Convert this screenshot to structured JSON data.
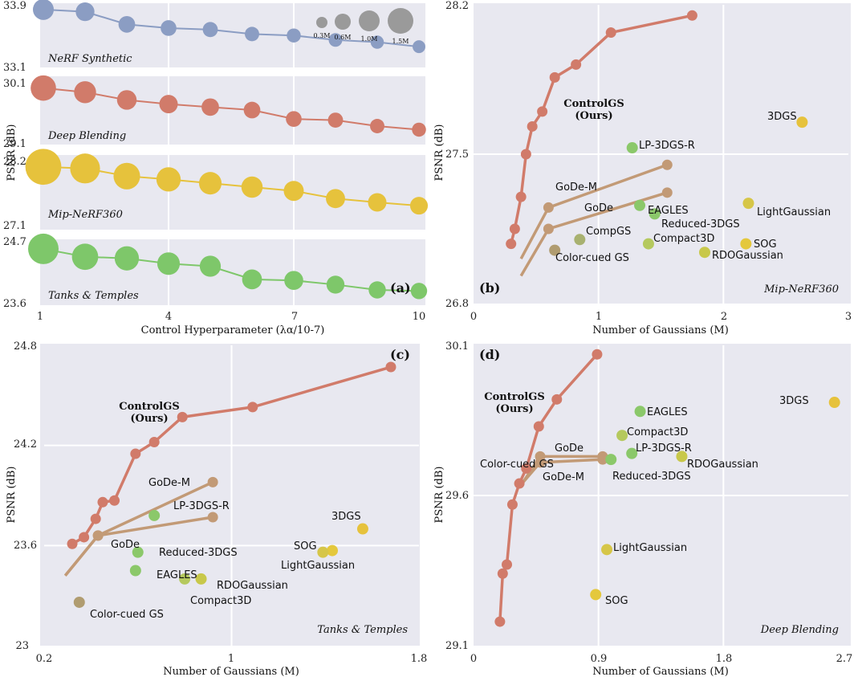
{
  "colors": {
    "panel_bg": "#e8e8f0",
    "grid": "#ffffff",
    "controlgs": "#d17b6a",
    "synthetic": "#8b9dc3",
    "deepblend": "#d17b6a",
    "mip": "#e6c23c",
    "tanks": "#7ec76a",
    "gode": "#c29a76",
    "lp3dgs": "#8bc86a",
    "eagles": "#8bc86a",
    "reduced": "#8bc86a",
    "compgs": "#a8b170",
    "compact3d": "#b5c95e",
    "colorcued": "#b09c70",
    "rdo": "#c8c84a",
    "sog": "#e4c83c",
    "lightgaussian": "#d6c648",
    "3dgs": "#e6c23c"
  },
  "chart_data": [
    {
      "panel": "(a)",
      "type": "line",
      "xlabel": "Control Hyperparameter (λα/10-7)",
      "ylabel": "PSNR (dB)",
      "x": [
        1,
        2,
        3,
        4,
        5,
        6,
        7,
        8,
        9,
        10
      ],
      "xticks": [
        "1",
        "4",
        "7",
        "10"
      ],
      "size_legend": [
        "0.3M",
        "0.6M",
        "1.0M",
        "1.5M"
      ],
      "series": [
        {
          "name": "NeRF Synthetic",
          "ylim": [
            33.1,
            33.9
          ],
          "yticks": [
            "33.9",
            "33.1"
          ],
          "values": [
            33.88,
            33.85,
            33.68,
            33.63,
            33.61,
            33.55,
            33.53,
            33.47,
            33.44,
            33.38
          ],
          "sizes": [
            0.36,
            0.26,
            0.18,
            0.15,
            0.13,
            0.11,
            0.1,
            0.09,
            0.08,
            0.07
          ]
        },
        {
          "name": "Deep Blending",
          "ylim": [
            29.1,
            30.1
          ],
          "yticks": [
            "30.1",
            "29.1"
          ],
          "values": [
            30.01,
            29.94,
            29.81,
            29.74,
            29.69,
            29.64,
            29.49,
            29.47,
            29.37,
            29.31
          ],
          "sizes": [
            0.62,
            0.42,
            0.3,
            0.25,
            0.21,
            0.18,
            0.15,
            0.13,
            0.11,
            0.1
          ]
        },
        {
          "name": "Mip-NeRF360",
          "ylim": [
            27.1,
            28.2
          ],
          "yticks": [
            "28.2",
            "27.1"
          ],
          "values": [
            28.16,
            28.13,
            27.99,
            27.93,
            27.86,
            27.79,
            27.72,
            27.58,
            27.51,
            27.45
          ],
          "sizes": [
            1.5,
            0.95,
            0.7,
            0.55,
            0.45,
            0.38,
            0.32,
            0.28,
            0.25,
            0.22
          ]
        },
        {
          "name": "Tanks & Temples",
          "ylim": [
            23.6,
            24.7
          ],
          "yticks": [
            "24.7",
            "23.6"
          ],
          "values": [
            24.64,
            24.49,
            24.46,
            24.36,
            24.31,
            24.06,
            24.04,
            23.96,
            23.86,
            23.84
          ],
          "sizes": [
            1.0,
            0.68,
            0.55,
            0.45,
            0.37,
            0.31,
            0.27,
            0.23,
            0.2,
            0.17
          ]
        }
      ]
    },
    {
      "panel": "(b)",
      "type": "scatter",
      "dataset": "Mip-NeRF360",
      "xlabel": "Number of Gaussians (M)",
      "ylabel": "PSNR (dB)",
      "xlim": [
        0,
        3
      ],
      "ylim": [
        26.8,
        28.2
      ],
      "xticks": [
        "0",
        "1",
        "2",
        "3"
      ],
      "yticks": [
        "26.8",
        "27.5",
        "28.2"
      ],
      "controlgs": {
        "label": "ControlGS (Ours)",
        "x": [
          0.3,
          0.33,
          0.38,
          0.42,
          0.47,
          0.55,
          0.65,
          0.82,
          1.1,
          1.75
        ],
        "y": [
          27.08,
          27.15,
          27.3,
          27.5,
          27.63,
          27.7,
          27.86,
          27.92,
          28.07,
          28.15
        ]
      },
      "gode_lines": [
        {
          "name": "GoDe-M",
          "x": [
            0.38,
            0.6,
            1.55
          ],
          "y": [
            27.01,
            27.25,
            27.45
          ]
        },
        {
          "name": "GoDe",
          "x": [
            0.38,
            0.6,
            1.55
          ],
          "y": [
            26.93,
            27.15,
            27.32
          ]
        }
      ],
      "points": [
        {
          "name": "3DGS",
          "x": 2.63,
          "y": 27.65
        },
        {
          "name": "LP-3DGS-R",
          "x": 1.27,
          "y": 27.53
        },
        {
          "name": "EAGLES",
          "x": 1.33,
          "y": 27.26
        },
        {
          "name": "Reduced-3DGS",
          "x": 1.45,
          "y": 27.22
        },
        {
          "name": "LightGaussian",
          "x": 2.2,
          "y": 27.27
        },
        {
          "name": "CompGS",
          "x": 0.85,
          "y": 27.1
        },
        {
          "name": "Compact3D",
          "x": 1.4,
          "y": 27.08
        },
        {
          "name": "SOG",
          "x": 2.18,
          "y": 27.08
        },
        {
          "name": "Color-cued GS",
          "x": 0.65,
          "y": 27.05
        },
        {
          "name": "RDOGaussian",
          "x": 1.85,
          "y": 27.04
        }
      ]
    },
    {
      "panel": "(c)",
      "type": "scatter",
      "dataset": "Tanks & Temples",
      "xlabel": "Number of Gaussians (M)",
      "ylabel": "PSNR (dB)",
      "xlim": [
        0.2,
        1.8
      ],
      "ylim": [
        23.0,
        24.8
      ],
      "xticks": [
        "0.2",
        "1",
        "1.8"
      ],
      "yticks": [
        "23",
        "23.6",
        "24.2",
        "24.8"
      ],
      "controlgs": {
        "label": "ControlGS (Ours)",
        "x": [
          0.32,
          0.37,
          0.42,
          0.45,
          0.5,
          0.59,
          0.67,
          0.79,
          1.09,
          1.68
        ],
        "y": [
          23.61,
          23.65,
          23.76,
          23.86,
          23.87,
          24.15,
          24.22,
          24.37,
          24.43,
          24.67
        ]
      },
      "gode_lines": [
        {
          "name": "GoDe-M",
          "x": [
            0.29,
            0.43,
            0.92
          ],
          "y": [
            23.42,
            23.66,
            23.98
          ]
        },
        {
          "name": "GoDe",
          "x": [
            0.29,
            0.43,
            0.92
          ],
          "y": [
            23.42,
            23.66,
            23.77
          ]
        }
      ],
      "points": [
        {
          "name": "3DGS",
          "x": 1.56,
          "y": 23.7
        },
        {
          "name": "LP-3DGS-R",
          "x": 0.67,
          "y": 23.78
        },
        {
          "name": "Reduced-3DGS",
          "x": 0.6,
          "y": 23.56
        },
        {
          "name": "SOG",
          "x": 1.43,
          "y": 23.57
        },
        {
          "name": "LightGaussian",
          "x": 1.39,
          "y": 23.56
        },
        {
          "name": "EAGLES",
          "x": 0.59,
          "y": 23.45
        },
        {
          "name": "RDOGaussian",
          "x": 0.87,
          "y": 23.4
        },
        {
          "name": "Compact3D",
          "x": 0.8,
          "y": 23.4
        },
        {
          "name": "Color-cued GS",
          "x": 0.35,
          "y": 23.26
        }
      ]
    },
    {
      "panel": "(d)",
      "type": "scatter",
      "dataset": "Deep Blending",
      "xlabel": "Number of Gaussians (M)",
      "ylabel": "PSNR (dB)",
      "xlim": [
        0,
        2.7
      ],
      "ylim": [
        29.1,
        30.1
      ],
      "xticks": [
        "0",
        "0.9",
        "1.8",
        "2.7"
      ],
      "yticks": [
        "29.1",
        "29.6",
        "30.1"
      ],
      "controlgs": {
        "label": "ControlGS (Ours)",
        "x": [
          0.19,
          0.21,
          0.24,
          0.28,
          0.33,
          0.38,
          0.47,
          0.6,
          0.89
        ],
        "y": [
          29.18,
          29.34,
          29.37,
          29.57,
          29.64,
          29.69,
          29.83,
          29.92,
          30.07
        ]
      },
      "gode_lines": [
        {
          "name": "GoDe",
          "x": [
            0.35,
            0.48,
            0.93
          ],
          "y": [
            29.64,
            29.73,
            29.73
          ]
        },
        {
          "name": "GoDe-M",
          "x": [
            0.35,
            0.48,
            0.93
          ],
          "y": [
            29.64,
            29.71,
            29.72
          ]
        }
      ],
      "points": [
        {
          "name": "3DGS",
          "x": 2.6,
          "y": 29.91
        },
        {
          "name": "EAGLES",
          "x": 1.2,
          "y": 29.88
        },
        {
          "name": "Compact3D",
          "x": 1.07,
          "y": 29.8
        },
        {
          "name": "LP-3DGS-R",
          "x": 1.14,
          "y": 29.74
        },
        {
          "name": "RDOGaussian",
          "x": 1.5,
          "y": 29.73
        },
        {
          "name": "Reduced-3DGS",
          "x": 0.99,
          "y": 29.72
        },
        {
          "name": "LightGaussian",
          "x": 0.96,
          "y": 29.42
        },
        {
          "name": "SOG",
          "x": 0.88,
          "y": 29.27
        }
      ]
    }
  ],
  "panels": {
    "a": {
      "tag": "(a)"
    },
    "b": {
      "tag": "(b)",
      "corner": "Mip-NeRF360",
      "ours_line1": "ControlGS",
      "ours_line2": "(Ours)"
    },
    "c": {
      "tag": "(c)",
      "corner": "Tanks & Temples",
      "ours_line1": "ControlGS",
      "ours_line2": "(Ours)"
    },
    "d": {
      "tag": "(d)",
      "corner": "Deep Blending",
      "ours_line1": "ControlGS",
      "ours_line2": "(Ours)"
    }
  }
}
